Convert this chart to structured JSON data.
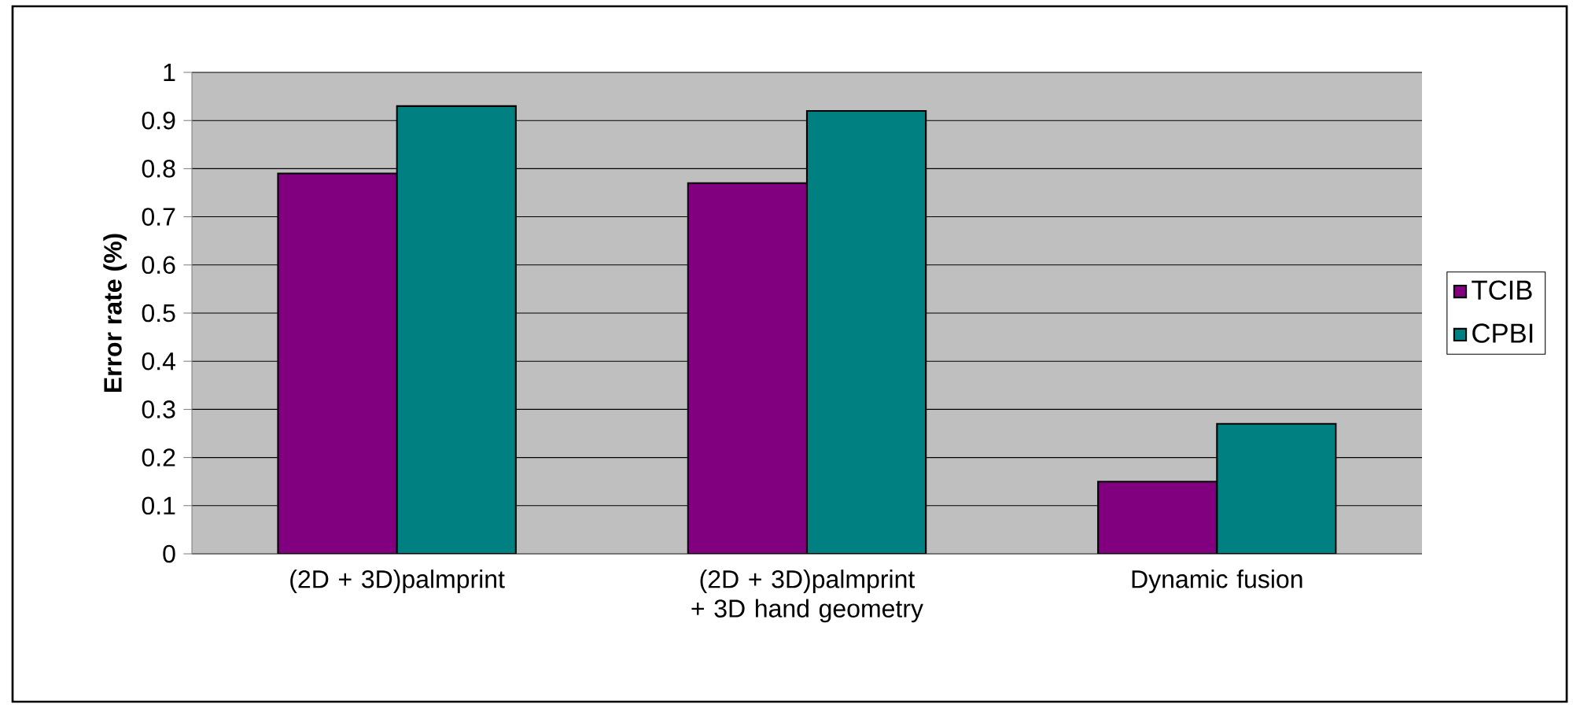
{
  "chart_data": {
    "type": "bar",
    "ylabel": "Error rate (%)",
    "categories": [
      "(2D + 3D)palmprint",
      "(2D + 3D)palmprint + 3D hand geometry",
      "Dynamic fusion"
    ],
    "series": [
      {
        "name": "TCIB",
        "color": "#800080",
        "values": [
          0.79,
          0.77,
          0.15
        ]
      },
      {
        "name": "CPBI",
        "color": "#008080",
        "values": [
          0.93,
          0.92,
          0.27
        ]
      }
    ],
    "ylim": [
      0,
      1
    ],
    "yticks": [
      0,
      0.1,
      0.2,
      0.3,
      0.4,
      0.5,
      0.6,
      0.7,
      0.8,
      0.9,
      1
    ],
    "grid": "y",
    "legend": "right"
  }
}
